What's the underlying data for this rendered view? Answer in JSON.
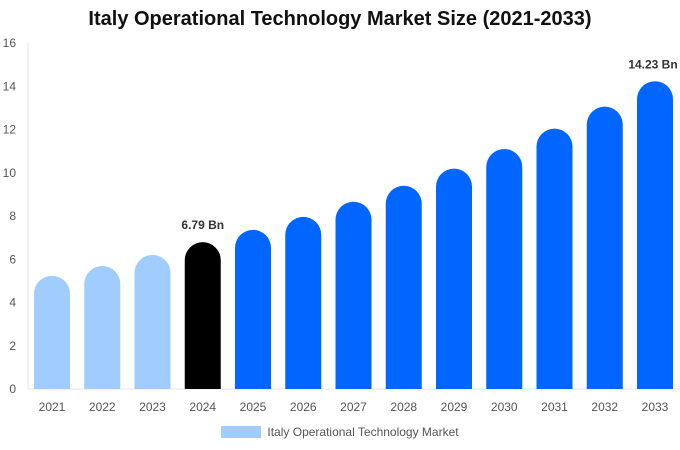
{
  "chart_data": {
    "type": "bar",
    "title": "Italy Operational Technology Market Size (2021-2033)",
    "categories": [
      "2021",
      "2022",
      "2023",
      "2024",
      "2025",
      "2026",
      "2027",
      "2028",
      "2029",
      "2030",
      "2031",
      "2032",
      "2033"
    ],
    "series": [
      {
        "name": "Italy Operational Technology Market",
        "values": [
          5.23,
          5.69,
          6.2,
          6.79,
          7.36,
          7.96,
          8.66,
          9.4,
          10.19,
          11.1,
          12.04,
          13.06,
          14.23
        ]
      }
    ],
    "data_labels": [
      {
        "index": 3,
        "text": "6.79 Bn"
      },
      {
        "index": 12,
        "text": "14.23 Bn"
      }
    ],
    "ylim": [
      0,
      16
    ],
    "yticks": [
      0,
      2,
      4,
      6,
      8,
      10,
      12,
      14,
      16
    ],
    "grid": false,
    "legend": "bottom",
    "colors": {
      "historical": "#a0cdfd",
      "base_year": "#000000",
      "forecast": "#0066ff",
      "legend": "#a0cdfd"
    }
  }
}
